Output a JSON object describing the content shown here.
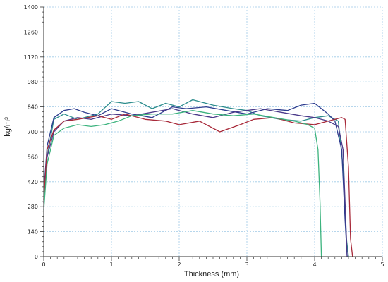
{
  "chart_data": {
    "type": "line",
    "xlabel": "Thickness (mm)",
    "ylabel": "kg/m³",
    "xlim": [
      0,
      5
    ],
    "ylim": [
      0,
      1400
    ],
    "xticks": [
      "0",
      "1",
      "2",
      "3",
      "4",
      "5"
    ],
    "yticks": [
      "0",
      "140",
      "280",
      "420",
      "560",
      "700",
      "840",
      "980",
      "1120",
      "1260",
      "1400"
    ],
    "grid": true,
    "legend": "none",
    "series": [
      {
        "color": "#2b8c8c",
        "x": [
          0,
          0.05,
          0.15,
          0.3,
          0.5,
          0.8,
          1.0,
          1.2,
          1.4,
          1.6,
          1.8,
          2.0,
          2.2,
          2.5,
          2.8,
          3.0,
          3.2,
          3.5,
          3.8,
          4.0,
          4.2,
          4.35,
          4.42,
          4.47,
          4.5
        ],
        "y": [
          280,
          560,
          770,
          800,
          770,
          800,
          870,
          860,
          870,
          830,
          860,
          840,
          880,
          850,
          830,
          820,
          790,
          770,
          760,
          780,
          790,
          760,
          500,
          100,
          0
        ]
      },
      {
        "color": "#2e3d8f",
        "x": [
          0,
          0.05,
          0.15,
          0.3,
          0.45,
          0.6,
          0.8,
          1.0,
          1.3,
          1.6,
          1.9,
          2.1,
          2.4,
          2.7,
          3.0,
          3.3,
          3.6,
          3.8,
          4.0,
          4.2,
          4.3,
          4.4,
          4.45,
          4.48
        ],
        "y": [
          360,
          620,
          780,
          820,
          830,
          810,
          790,
          830,
          800,
          780,
          840,
          830,
          840,
          820,
          800,
          830,
          820,
          850,
          860,
          800,
          760,
          600,
          200,
          0
        ]
      },
      {
        "color": "#4b3a8a",
        "x": [
          0,
          0.05,
          0.15,
          0.3,
          0.5,
          0.7,
          1.0,
          1.3,
          1.6,
          1.9,
          2.2,
          2.5,
          2.8,
          3.0,
          3.2,
          3.5,
          3.8,
          4.0,
          4.2,
          4.35,
          4.42,
          4.46,
          4.48
        ],
        "y": [
          300,
          560,
          700,
          760,
          780,
          770,
          800,
          790,
          810,
          830,
          800,
          780,
          810,
          820,
          830,
          810,
          790,
          780,
          760,
          730,
          600,
          200,
          0
        ]
      },
      {
        "color": "#a82a3a",
        "x": [
          0,
          0.05,
          0.15,
          0.3,
          0.5,
          0.8,
          1.0,
          1.2,
          1.5,
          1.8,
          2.0,
          2.3,
          2.6,
          2.9,
          3.1,
          3.4,
          3.7,
          4.0,
          4.2,
          4.4,
          4.45,
          4.5,
          4.53,
          4.56
        ],
        "y": [
          320,
          600,
          710,
          760,
          770,
          790,
          770,
          800,
          770,
          760,
          740,
          760,
          700,
          740,
          770,
          780,
          750,
          740,
          760,
          780,
          770,
          500,
          100,
          0
        ]
      },
      {
        "color": "#3cb37e",
        "x": [
          0,
          0.05,
          0.15,
          0.3,
          0.5,
          0.7,
          0.9,
          1.1,
          1.3,
          1.6,
          1.9,
          2.2,
          2.5,
          2.8,
          3.1,
          3.4,
          3.7,
          3.9,
          4.0,
          4.05,
          4.08,
          4.1
        ],
        "y": [
          260,
          520,
          680,
          720,
          740,
          730,
          740,
          760,
          790,
          800,
          800,
          820,
          800,
          790,
          800,
          780,
          760,
          740,
          720,
          600,
          300,
          0
        ]
      }
    ]
  }
}
